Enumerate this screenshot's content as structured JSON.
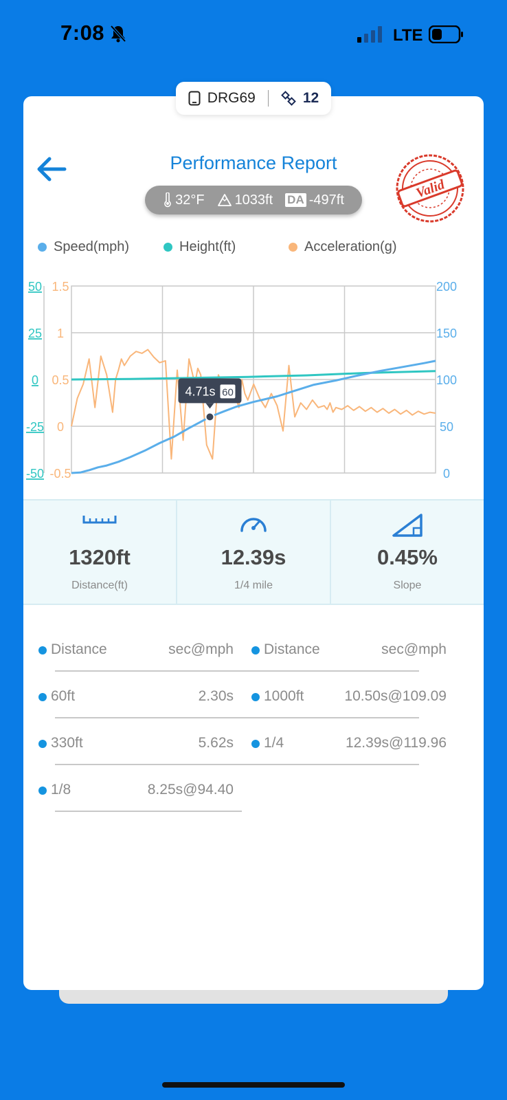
{
  "status_bar": {
    "time": "7:08",
    "network": "LTE"
  },
  "device": {
    "name": "DRG69",
    "satellites": "12"
  },
  "header": {
    "title": "Performance Report",
    "stamp_text": "Valid"
  },
  "conditions": {
    "temperature": "32°F",
    "altitude": "1033ft",
    "da_label": "DA",
    "density_altitude": "-497ft"
  },
  "legend": [
    {
      "label": "Speed(mph)",
      "color": "#5aaeea"
    },
    {
      "label": "Height(ft)",
      "color": "#2fc6c2"
    },
    {
      "label": "Acceleration(g)",
      "color": "#f9b67a"
    }
  ],
  "chart_data": {
    "type": "line",
    "x_range": [
      0,
      12.39
    ],
    "left_axis_height": {
      "ticks": [
        "50",
        "25",
        "0",
        "-25",
        "-50"
      ],
      "range": [
        -50,
        50
      ]
    },
    "left_axis_accel": {
      "ticks": [
        "1.5",
        "1",
        "0.5",
        "0",
        "-0.5"
      ],
      "range": [
        -0.5,
        1.5
      ]
    },
    "right_axis_speed": {
      "ticks": [
        "200",
        "150",
        "100",
        "50",
        "0"
      ],
      "range": [
        0,
        200
      ]
    },
    "grid": true,
    "tooltip": {
      "time": "4.71s",
      "speed": "60"
    },
    "series": [
      {
        "name": "Speed(mph)",
        "color": "#5aaeea",
        "axis": "speed",
        "x": [
          0,
          0.3,
          0.6,
          0.9,
          1.2,
          1.6,
          2.0,
          2.5,
          3.0,
          3.5,
          4.0,
          4.71,
          5.2,
          5.62,
          6.2,
          7.0,
          7.5,
          8.25,
          9.0,
          9.7,
          10.5,
          11.2,
          12.0,
          12.39
        ],
        "y": [
          0,
          0.5,
          3,
          6,
          8,
          12,
          17,
          24,
          32,
          39,
          48,
          60,
          66,
          71,
          76,
          82,
          87,
          94.4,
          99,
          104,
          109.09,
          113,
          117.5,
          119.96
        ]
      },
      {
        "name": "Height(ft)",
        "color": "#2fc6c2",
        "axis": "height",
        "x": [
          0,
          2,
          4,
          6,
          8,
          10,
          12.39
        ],
        "y": [
          0,
          0.3,
          0.8,
          1.4,
          2.2,
          3.5,
          4.5
        ]
      },
      {
        "name": "Acceleration(g)",
        "color": "#f9b67a",
        "axis": "accel",
        "x": [
          0,
          0.2,
          0.4,
          0.6,
          0.8,
          1.0,
          1.2,
          1.4,
          1.5,
          1.6,
          1.7,
          1.8,
          2.0,
          2.2,
          2.4,
          2.6,
          2.8,
          3.0,
          3.2,
          3.4,
          3.6,
          3.8,
          4.0,
          4.2,
          4.3,
          4.4,
          4.6,
          4.8,
          5.0,
          5.2,
          5.4,
          5.6,
          5.7,
          5.8,
          5.9,
          6.0,
          6.2,
          6.4,
          6.6,
          6.8,
          7.0,
          7.2,
          7.4,
          7.6,
          7.8,
          8.0,
          8.2,
          8.4,
          8.6,
          8.7,
          8.8,
          8.9,
          9.0,
          9.2,
          9.4,
          9.6,
          9.8,
          10.0,
          10.2,
          10.4,
          10.6,
          10.8,
          11.0,
          11.2,
          11.4,
          11.6,
          11.8,
          12.0,
          12.2,
          12.39
        ],
        "y": [
          0,
          0.3,
          0.45,
          0.72,
          0.2,
          0.75,
          0.55,
          0.15,
          0.5,
          0.6,
          0.72,
          0.65,
          0.75,
          0.8,
          0.78,
          0.82,
          0.74,
          0.68,
          0.7,
          -0.35,
          0.6,
          -0.15,
          0.72,
          0.45,
          0.62,
          0.55,
          -0.2,
          -0.35,
          0.55,
          0.4,
          0.35,
          0.3,
          0.2,
          0.5,
          0.35,
          0.28,
          0.45,
          0.3,
          0.2,
          0.35,
          0.22,
          -0.05,
          0.65,
          0.1,
          0.25,
          0.18,
          0.28,
          0.2,
          0.22,
          0.18,
          0.25,
          0.15,
          0.2,
          0.18,
          0.22,
          0.17,
          0.21,
          0.16,
          0.2,
          0.15,
          0.19,
          0.14,
          0.18,
          0.13,
          0.17,
          0.12,
          0.16,
          0.13,
          0.15,
          0.14
        ]
      }
    ]
  },
  "stats": [
    {
      "icon": "ruler-icon",
      "value": "1320ft",
      "label": "Distance(ft)"
    },
    {
      "icon": "speedometer-icon",
      "value": "12.39s",
      "label": "1/4 mile"
    },
    {
      "icon": "slope-icon",
      "value": "0.45%",
      "label": "Slope"
    }
  ],
  "splits": {
    "left_header": {
      "key": "Distance",
      "value": "sec@mph"
    },
    "right_header": {
      "key": "Distance",
      "value": "sec@mph"
    },
    "left": [
      {
        "key": "60ft",
        "value": "2.30s"
      },
      {
        "key": "330ft",
        "value": "5.62s"
      },
      {
        "key": "1/8",
        "value": "8.25s@94.40"
      }
    ],
    "right": [
      {
        "key": "1000ft",
        "value": "10.50s@109.09"
      },
      {
        "key": "1/4",
        "value": "12.39s@119.96"
      }
    ]
  },
  "colors": {
    "background": "#0a7ce6",
    "accent": "#1583d9",
    "stamp": "#d93a2b"
  }
}
